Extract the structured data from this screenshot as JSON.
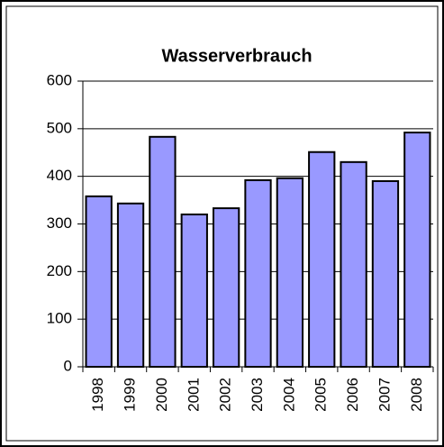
{
  "chart_data": {
    "type": "bar",
    "title": "Wasserverbrauch",
    "categories": [
      "1998",
      "1999",
      "2000",
      "2001",
      "2002",
      "2003",
      "2004",
      "2005",
      "2006",
      "2007",
      "2008"
    ],
    "values": [
      358,
      343,
      483,
      320,
      333,
      392,
      396,
      451,
      430,
      390,
      492
    ],
    "color": "#9999ff",
    "ylim": [
      0,
      600
    ],
    "yticks": [
      0,
      100,
      200,
      300,
      400,
      500,
      600
    ],
    "grid": true
  }
}
